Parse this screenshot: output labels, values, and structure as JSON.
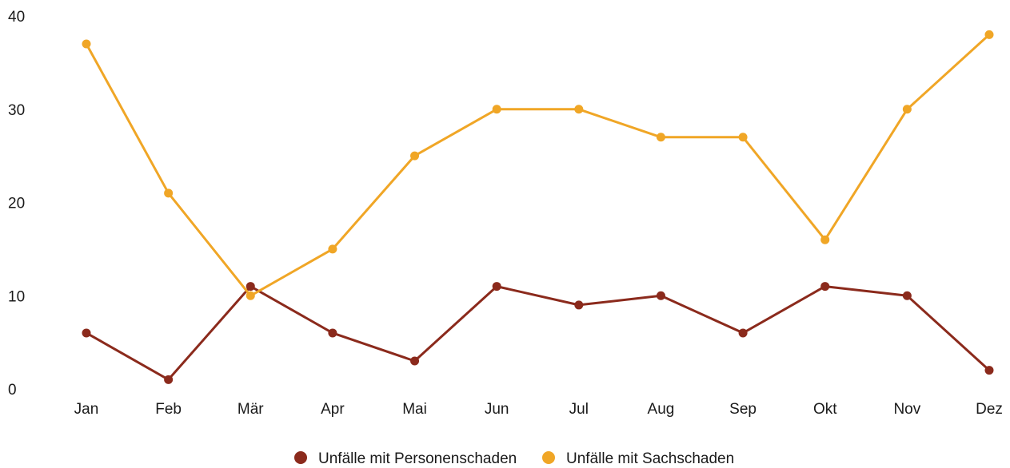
{
  "chart_data": {
    "type": "line",
    "categories": [
      "Jan",
      "Feb",
      "Mär",
      "Apr",
      "Mai",
      "Jun",
      "Jul",
      "Aug",
      "Sep",
      "Okt",
      "Nov",
      "Dez"
    ],
    "series": [
      {
        "name": "Unfälle mit Personenschaden",
        "color": "#8b2a1c",
        "values": [
          6,
          1,
          11,
          6,
          3,
          11,
          9,
          10,
          6,
          11,
          10,
          2
        ]
      },
      {
        "name": "Unfälle mit Sachschaden",
        "color": "#f0a626",
        "values": [
          37,
          21,
          10,
          15,
          25,
          30,
          30,
          27,
          27,
          16,
          30,
          38
        ]
      }
    ],
    "yticks": [
      "0",
      "10",
      "20",
      "30",
      "40"
    ],
    "ylim": [
      0,
      40
    ],
    "grid": false,
    "legend_position": "bottom"
  }
}
